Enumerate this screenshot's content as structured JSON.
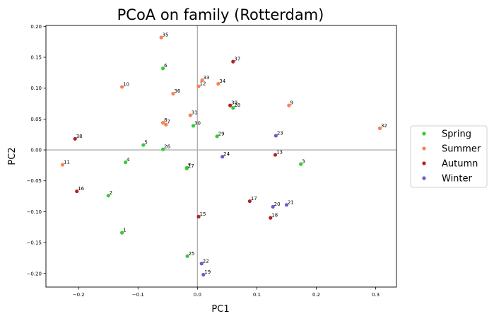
{
  "chart_data": {
    "type": "scatter",
    "title": "PCoA on family (Rotterdam)",
    "xlabel": "PC1",
    "ylabel": "PC2",
    "xlim": [
      -0.255,
      0.335
    ],
    "ylim": [
      -0.222,
      0.2015
    ],
    "xticks": [
      -0.2,
      -0.1,
      0.0,
      0.1,
      0.2,
      0.3
    ],
    "xtick_labels": [
      "−0.2",
      "−0.1",
      "0.0",
      "0.1",
      "0.2",
      "0.3"
    ],
    "yticks": [
      -0.2,
      -0.15,
      -0.1,
      -0.05,
      0.0,
      0.05,
      0.1,
      0.15,
      0.2
    ],
    "ytick_labels": [
      "−0.20",
      "−0.15",
      "−0.10",
      "−0.05",
      "0.00",
      "0.05",
      "0.10",
      "0.15",
      "0.20"
    ],
    "zero_lines": true,
    "grid": false,
    "legend_position": "right",
    "series": [
      {
        "name": "Spring",
        "color": "#32cd32",
        "points": [
          {
            "label": "1",
            "x": -0.127,
            "y": -0.134
          },
          {
            "label": "2",
            "x": -0.15,
            "y": -0.074
          },
          {
            "label": "3",
            "x": 0.174,
            "y": -0.023
          },
          {
            "label": "4",
            "x": -0.121,
            "y": -0.02
          },
          {
            "label": "5",
            "x": -0.091,
            "y": 0.008
          },
          {
            "label": "6",
            "x": -0.058,
            "y": 0.132
          },
          {
            "label": "7",
            "x": -0.018,
            "y": -0.029
          },
          {
            "label": "25",
            "x": -0.017,
            "y": -0.172
          },
          {
            "label": "26",
            "x": -0.058,
            "y": 0.001
          },
          {
            "label": "27",
            "x": -0.018,
            "y": -0.03
          },
          {
            "label": "28",
            "x": 0.06,
            "y": 0.068
          },
          {
            "label": "29",
            "x": 0.033,
            "y": 0.022
          },
          {
            "label": "30",
            "x": -0.007,
            "y": 0.039
          }
        ]
      },
      {
        "name": "Summer",
        "color": "#ff7f50",
        "points": [
          {
            "label": "7",
            "x": -0.053,
            "y": 0.041
          },
          {
            "label": "8",
            "x": -0.058,
            "y": 0.044
          },
          {
            "label": "9",
            "x": 0.154,
            "y": 0.072
          },
          {
            "label": "10",
            "x": -0.127,
            "y": 0.102
          },
          {
            "label": "11",
            "x": -0.227,
            "y": -0.024
          },
          {
            "label": "12",
            "x": 0.002,
            "y": 0.103
          },
          {
            "label": "31",
            "x": -0.012,
            "y": 0.056
          },
          {
            "label": "32",
            "x": 0.307,
            "y": 0.035
          },
          {
            "label": "33",
            "x": 0.008,
            "y": 0.113
          },
          {
            "label": "34",
            "x": 0.035,
            "y": 0.107
          },
          {
            "label": "35",
            "x": -0.061,
            "y": 0.182
          },
          {
            "label": "36",
            "x": -0.041,
            "y": 0.091
          }
        ]
      },
      {
        "name": "Autumn",
        "color": "#b22222",
        "points": [
          {
            "label": "13",
            "x": 0.131,
            "y": -0.008
          },
          {
            "label": "15",
            "x": 0.002,
            "y": -0.108
          },
          {
            "label": "16",
            "x": -0.203,
            "y": -0.067
          },
          {
            "label": "17",
            "x": 0.088,
            "y": -0.083
          },
          {
            "label": "18",
            "x": 0.123,
            "y": -0.11
          },
          {
            "label": "37",
            "x": 0.06,
            "y": 0.143
          },
          {
            "label": "38",
            "x": -0.206,
            "y": 0.018
          },
          {
            "label": "39",
            "x": 0.055,
            "y": 0.072
          }
        ]
      },
      {
        "name": "Winter",
        "color": "#6a5acd",
        "points": [
          {
            "label": "19",
            "x": 0.01,
            "y": -0.202
          },
          {
            "label": "20",
            "x": 0.127,
            "y": -0.092
          },
          {
            "label": "21",
            "x": 0.15,
            "y": -0.089
          },
          {
            "label": "22",
            "x": 0.007,
            "y": -0.184
          },
          {
            "label": "23",
            "x": 0.132,
            "y": 0.023
          },
          {
            "label": "24",
            "x": 0.042,
            "y": -0.011
          }
        ]
      }
    ]
  }
}
